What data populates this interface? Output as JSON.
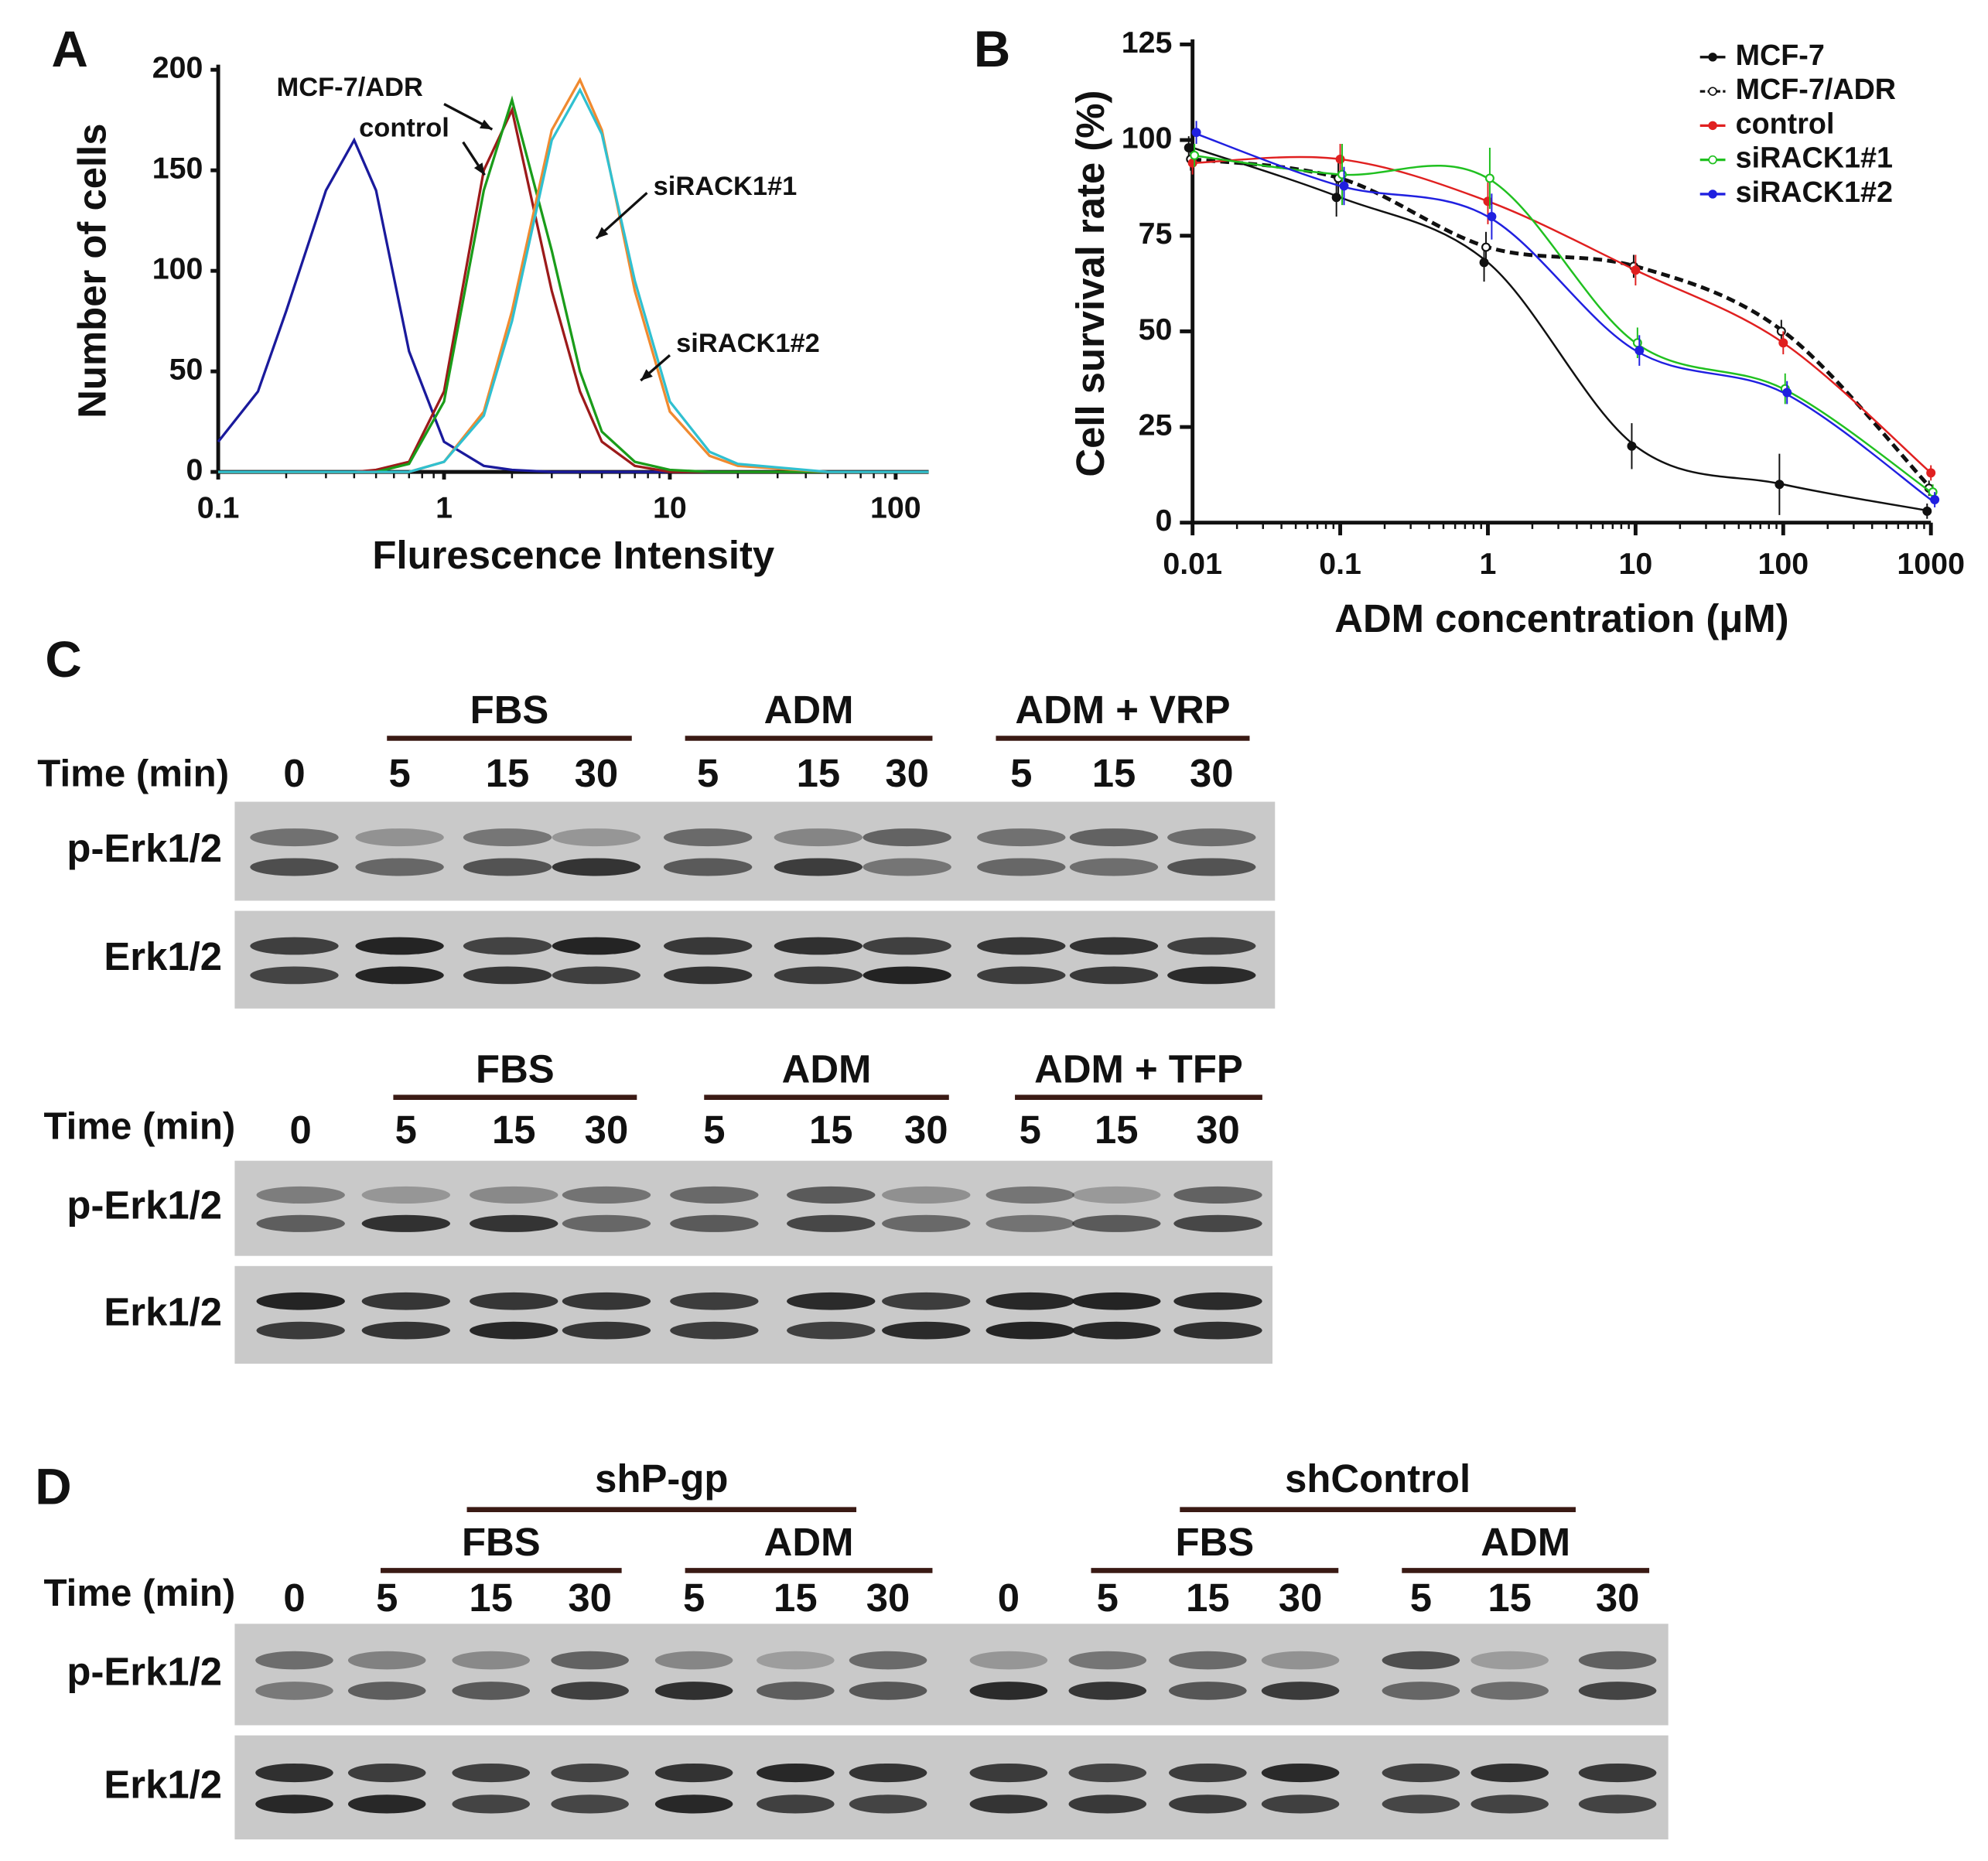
{
  "chart_data": [
    {
      "type": "line",
      "panel": "A",
      "ylabel": "Number of cells",
      "xlabel": "Flurescence Intensity",
      "xlog": true,
      "xlim": [
        0.1,
        140
      ],
      "xticks": [
        0.1,
        1,
        10,
        100
      ],
      "ylim": [
        0,
        200
      ],
      "yticks": [
        0,
        50,
        100,
        150,
        200
      ],
      "x": [
        0.1,
        0.15,
        0.2,
        0.3,
        0.4,
        0.5,
        0.7,
        1,
        1.5,
        2,
        3,
        4,
        5,
        7,
        10,
        15,
        20,
        50,
        100,
        140
      ],
      "series": [
        {
          "color": "#1a1a9c",
          "values": [
            15,
            40,
            80,
            140,
            165,
            140,
            60,
            15,
            3,
            1,
            0,
            0,
            0,
            0,
            0,
            0,
            0,
            0,
            0,
            0
          ]
        },
        {
          "name": "MCF-7/ADR",
          "color": "#9c1a1a",
          "values": [
            0,
            0,
            0,
            0,
            0,
            1,
            5,
            40,
            150,
            180,
            90,
            40,
            15,
            3,
            0,
            0,
            0,
            0,
            0,
            0
          ]
        },
        {
          "name": "control",
          "color": "#1a9c1a",
          "values": [
            0,
            0,
            0,
            0,
            0,
            0,
            4,
            35,
            140,
            185,
            110,
            50,
            20,
            5,
            1,
            0,
            0,
            0,
            0,
            0
          ]
        },
        {
          "name": "siRACK1#1",
          "color": "#f08a30",
          "values": [
            0,
            0,
            0,
            0,
            0,
            0,
            0,
            5,
            30,
            80,
            170,
            195,
            170,
            90,
            30,
            8,
            3,
            0,
            0,
            0
          ]
        },
        {
          "name": "siRACK1#2",
          "color": "#30c0d0",
          "values": [
            0,
            0,
            0,
            0,
            0,
            0,
            0,
            5,
            28,
            75,
            165,
            190,
            168,
            95,
            35,
            10,
            4,
            0,
            0,
            0
          ]
        }
      ]
    },
    {
      "type": "line",
      "panel": "B",
      "ylabel": "Cell survival rate (%)",
      "xlabel": "ADM concentration (μM)",
      "xlog": true,
      "xlim": [
        0.01,
        1000
      ],
      "xticks": [
        0.01,
        0.1,
        1,
        10,
        100,
        1000
      ],
      "ylim": [
        0,
        125
      ],
      "yticks": [
        0,
        25,
        50,
        75,
        100,
        125
      ],
      "x": [
        0.01,
        0.1,
        1,
        10,
        100,
        1000
      ],
      "series": [
        {
          "name": "MCF-7",
          "color": "#111111",
          "line_style": "solid",
          "marker_fill": "filled",
          "values": [
            98,
            85,
            68,
            20,
            10,
            3
          ],
          "errors": [
            3,
            5,
            5,
            6,
            8,
            2
          ]
        },
        {
          "name": "MCF-7/ADR",
          "color": "#111111",
          "line_style": "dashed",
          "marker_fill": "open",
          "values": [
            95,
            90,
            72,
            67,
            50,
            9
          ],
          "errors": [
            3,
            4,
            4,
            3,
            3,
            2
          ]
        },
        {
          "name": "control",
          "color": "#e02020",
          "line_style": "solid",
          "marker_fill": "filled",
          "values": [
            94,
            95,
            84,
            66,
            47,
            13
          ],
          "errors": [
            3,
            4,
            6,
            4,
            3,
            2
          ]
        },
        {
          "name": "siRACK1#1",
          "color": "#20c020",
          "line_style": "solid",
          "marker_fill": "open",
          "values": [
            96,
            91,
            90,
            47,
            35,
            8
          ],
          "errors": [
            3,
            8,
            8,
            4,
            4,
            2
          ]
        },
        {
          "name": "siRACK1#2",
          "color": "#2020e0",
          "line_style": "solid",
          "marker_fill": "filled",
          "values": [
            102,
            88,
            80,
            45,
            34,
            6
          ],
          "errors": [
            3,
            5,
            6,
            4,
            3,
            2
          ]
        }
      ]
    }
  ],
  "blots": [
    {
      "panel": "C",
      "groups": [
        "FBS",
        "ADM",
        "ADM + VRP"
      ],
      "time_label": "Time (min)",
      "times": [
        0,
        5,
        15,
        30,
        5,
        15,
        30,
        5,
        15,
        30
      ],
      "rows": [
        "p-Erk1/2",
        "Erk1/2"
      ]
    },
    {
      "groups": [
        "FBS",
        "ADM",
        "ADM + TFP"
      ],
      "time_label": "Time (min)",
      "times": [
        0,
        5,
        15,
        30,
        5,
        15,
        30,
        5,
        15,
        30
      ],
      "rows": [
        "p-Erk1/2",
        "Erk1/2"
      ]
    },
    {
      "panel": "D",
      "supergroups": [
        "shP-gp",
        "shControl"
      ],
      "groups": [
        "FBS",
        "ADM",
        "FBS",
        "ADM"
      ],
      "time_label": "Time (min)",
      "times": [
        0,
        5,
        15,
        30,
        5,
        15,
        30,
        0,
        5,
        15,
        30,
        5,
        15,
        30
      ],
      "rows": [
        "p-Erk1/2",
        "Erk1/2"
      ]
    }
  ]
}
